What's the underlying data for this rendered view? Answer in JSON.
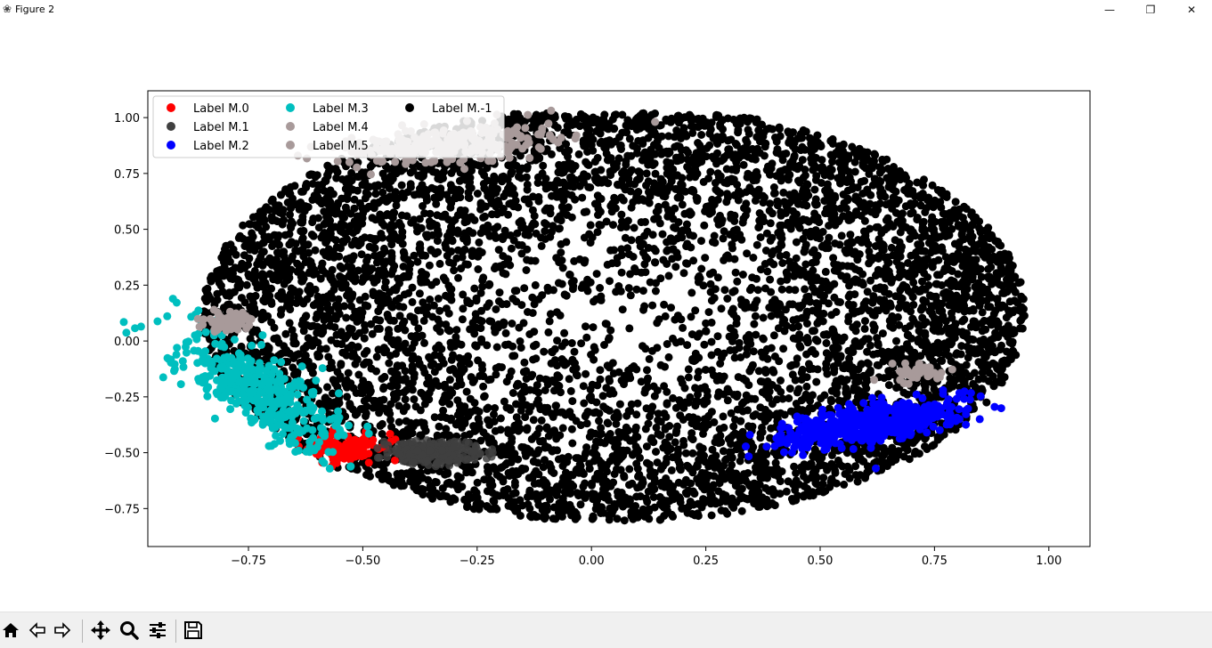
{
  "window": {
    "title": "Figure 2",
    "controls": {
      "minimize": "—",
      "maximize": "❐",
      "close": "✕"
    }
  },
  "toolbar": {
    "buttons": [
      {
        "name": "home-icon",
        "tooltip": "Home"
      },
      {
        "name": "back-icon",
        "tooltip": "Back"
      },
      {
        "name": "forward-icon",
        "tooltip": "Forward"
      },
      {
        "name": "pan-icon",
        "tooltip": "Pan"
      },
      {
        "name": "zoom-icon",
        "tooltip": "Zoom"
      },
      {
        "name": "configure-subplots-icon",
        "tooltip": "Subplots"
      },
      {
        "name": "save-icon",
        "tooltip": "Save"
      }
    ]
  },
  "chart_data": {
    "type": "scatter",
    "title": "",
    "xlabel": "",
    "ylabel": "",
    "xlim": [
      -0.97,
      1.09
    ],
    "ylim": [
      -0.92,
      1.12
    ],
    "xticks": [
      -0.75,
      -0.5,
      -0.25,
      0.0,
      0.25,
      0.5,
      0.75,
      1.0
    ],
    "xtick_labels": [
      "−0.75",
      "−0.50",
      "−0.25",
      "0.00",
      "0.25",
      "0.50",
      "0.75",
      "1.00"
    ],
    "yticks": [
      -0.75,
      -0.5,
      -0.25,
      0.0,
      0.25,
      0.5,
      0.75,
      1.0
    ],
    "ytick_labels": [
      "−0.75",
      "−0.50",
      "−0.25",
      "0.00",
      "0.25",
      "0.50",
      "0.75",
      "1.00"
    ],
    "grid": false,
    "legend_placement": "upper-left",
    "legend_columns": 3,
    "series": [
      {
        "name": "Label M.0",
        "color": "#ff0000",
        "center": [
          -0.54,
          -0.48
        ],
        "spread": [
          0.04,
          0.03
        ],
        "count": 140,
        "angle": 0
      },
      {
        "name": "Label M.1",
        "color": "#404040",
        "center": [
          -0.34,
          -0.5
        ],
        "spread": [
          0.05,
          0.025
        ],
        "count": 260,
        "angle": 0
      },
      {
        "name": "Label M.2",
        "color": "#0000ff",
        "center": [
          0.61,
          -0.37
        ],
        "spread": [
          0.1,
          0.04
        ],
        "count": 520,
        "angle": 0.35
      },
      {
        "name": "Label M.3",
        "color": "#00bfbf",
        "center": [
          -0.73,
          -0.22
        ],
        "spread": [
          0.055,
          0.15
        ],
        "count": 420,
        "angle": 0.55
      },
      {
        "name": "Label M.4",
        "color": "#a89a9a",
        "center": [
          -0.31,
          0.88
        ],
        "spread": [
          0.12,
          0.04
        ],
        "count": 260,
        "angle": 0.15
      },
      {
        "name": "Label M.5",
        "color": "#a89a9a",
        "center": [
          -0.8,
          0.09
        ],
        "spread": [
          0.03,
          0.02
        ],
        "count": 60,
        "angle": 0,
        "extra_centers": [
          [
            0.72,
            -0.14
          ]
        ]
      },
      {
        "name": "Label M.-1",
        "color": "#000000",
        "center": [
          0.05,
          0.12
        ],
        "spread": [
          0.9,
          0.93
        ],
        "count": 6500,
        "angle": 0
      }
    ]
  }
}
